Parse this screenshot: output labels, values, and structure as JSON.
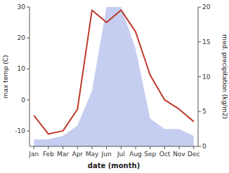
{
  "chart_data": {
    "type": "line",
    "xlabel": "date (month)",
    "ylabel": "max temp (C)",
    "y2label": "med. precipitation (kg/m2)",
    "categories": [
      "Jan",
      "Feb",
      "Mar",
      "Apr",
      "May",
      "Jun",
      "Jul",
      "Aug",
      "Sep",
      "Oct",
      "Nov",
      "Dec"
    ],
    "series": [
      {
        "type": "area",
        "axis": "y2",
        "color": "#c5cef0",
        "values": [
          1.0,
          1.0,
          1.5,
          3.0,
          8.0,
          20.0,
          20.0,
          14.0,
          4.0,
          2.5,
          2.5,
          1.5
        ]
      },
      {
        "type": "line",
        "color": "#c0392b",
        "values": [
          -5,
          -11,
          -10,
          -3,
          29,
          25,
          29,
          22,
          8,
          0,
          -3,
          -7
        ]
      }
    ],
    "ylim": [
      -15,
      30
    ],
    "yticks": [
      -10,
      0,
      10,
      20,
      30
    ],
    "y2lim": [
      0,
      20
    ],
    "y2ticks": [
      0,
      5,
      10,
      15,
      20
    ],
    "grid": false
  }
}
